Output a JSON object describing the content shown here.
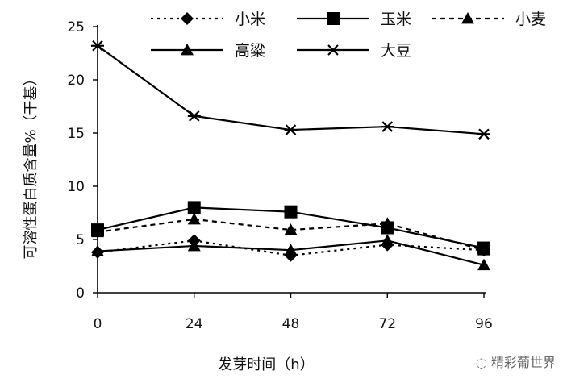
{
  "chart_data": {
    "type": "line",
    "title": "",
    "xlabel": "发芽时间（h）",
    "ylabel": "可溶性蛋白质含量%（干基）",
    "x": [
      0,
      24,
      48,
      72,
      96
    ],
    "xlim": [
      0,
      96
    ],
    "ylim": [
      0,
      25
    ],
    "xticks": [
      "0",
      "24",
      "48",
      "72",
      "96"
    ],
    "yticks": [
      "0",
      "5",
      "10",
      "15",
      "20",
      "25"
    ],
    "grid": false,
    "legend_position": "top",
    "series": [
      {
        "name": "小米",
        "values": [
          3.8,
          4.9,
          3.5,
          4.5,
          4.0
        ],
        "marker": "diamond",
        "dash": "dotted",
        "color": "#000000"
      },
      {
        "name": "玉米",
        "values": [
          5.9,
          8.0,
          7.6,
          6.1,
          4.2
        ],
        "marker": "square",
        "dash": "solid",
        "color": "#000000"
      },
      {
        "name": "小麦",
        "values": [
          5.7,
          6.9,
          5.9,
          6.5,
          4.0
        ],
        "marker": "triangle",
        "dash": "dashed",
        "color": "#000000"
      },
      {
        "name": "高粱",
        "values": [
          3.9,
          4.4,
          4.0,
          4.9,
          2.6
        ],
        "marker": "triangle",
        "dash": "solid",
        "color": "#000000"
      },
      {
        "name": "大豆",
        "values": [
          23.2,
          16.6,
          15.3,
          15.6,
          14.9
        ],
        "marker": "asterisk",
        "dash": "solid",
        "color": "#000000"
      }
    ]
  },
  "watermark": "精彩葡世界"
}
